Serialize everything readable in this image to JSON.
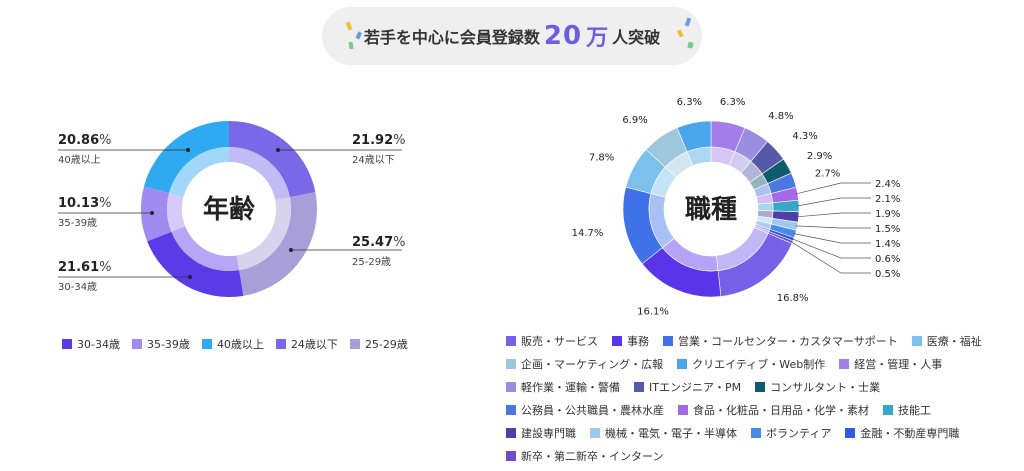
{
  "headline": {
    "prefix": "若手を中心に会員登録数",
    "number": "20",
    "unit": "万",
    "suffix": "人突破"
  },
  "colors": {
    "headline_bg": "#efefef",
    "accent": "#6f5ce0"
  },
  "chart_data": [
    {
      "type": "pie",
      "variant": "donut",
      "title": "年齢",
      "slices": [
        {
          "label": "24歳以下",
          "value": 21.92,
          "value_text": "21.92",
          "color": "#7a68e8",
          "label_side": "right"
        },
        {
          "label": "25-29歳",
          "value": 25.47,
          "value_text": "25.47",
          "color": "#a89ed8",
          "label_side": "right"
        },
        {
          "label": "30-34歳",
          "value": 21.61,
          "value_text": "21.61",
          "color": "#5a3be8",
          "label_side": "left"
        },
        {
          "label": "35-39歳",
          "value": 10.13,
          "value_text": "10.13",
          "color": "#a08cf0",
          "label_side": "left"
        },
        {
          "label": "40歳以上",
          "value": 20.86,
          "value_text": "20.86",
          "color": "#2fa9ef",
          "label_side": "left"
        }
      ],
      "value_suffix": "%",
      "legend": [
        "30-34歳",
        "35-39歳",
        "40歳以上",
        "24歳以下",
        "25-29歳"
      ],
      "legend_placement": "bottom"
    },
    {
      "type": "pie",
      "variant": "donut",
      "title": "職種",
      "slices": [
        {
          "label": "経営・管理・人事",
          "value": 6.3,
          "value_text": "6.3%",
          "color": "#a47ee8"
        },
        {
          "label": "軽作業・運輸・警備",
          "value": 4.8,
          "value_text": "4.8%",
          "color": "#9b8ee0"
        },
        {
          "label": "ITエンジニア・PM",
          "value": 4.3,
          "value_text": "4.3%",
          "color": "#545aa8"
        },
        {
          "label": "コンサルタント・士業",
          "value": 2.9,
          "value_text": "2.9%",
          "color": "#0e5a6e"
        },
        {
          "label": "公務員・公共職員・農林水産",
          "value": 2.7,
          "value_text": "2.7%",
          "color": "#4a78e0"
        },
        {
          "label": "食品・化粧品・日用品・化学・素材",
          "value": 2.4,
          "value_text": "2.4%",
          "color": "#a468e8"
        },
        {
          "label": "技能工",
          "value": 2.1,
          "value_text": "2.1%",
          "color": "#37a8c8"
        },
        {
          "label": "建設専門職",
          "value": 1.9,
          "value_text": "1.9%",
          "color": "#4e3ea8"
        },
        {
          "label": "機械・電気・電子・半導体",
          "value": 1.5,
          "value_text": "1.5%",
          "color": "#9ec8f0"
        },
        {
          "label": "ボランティア",
          "value": 1.4,
          "value_text": "1.4%",
          "color": "#4a8ae8"
        },
        {
          "label": "金融・不動産専門職",
          "value": 0.6,
          "value_text": "0.6%",
          "color": "#3058e8"
        },
        {
          "label": "新卒・第二新卒・インターン",
          "value": 0.5,
          "value_text": "0.5%",
          "color": "#6e4ec8"
        },
        {
          "label": "販売・サービス",
          "value": 16.8,
          "value_text": "16.8%",
          "color": "#7660e8"
        },
        {
          "label": "事務",
          "value": 16.1,
          "value_text": "16.1%",
          "color": "#5a34e8"
        },
        {
          "label": "営業・コールセンター・カスタマーサポート",
          "value": 14.7,
          "value_text": "14.7%",
          "color": "#3f72e8"
        },
        {
          "label": "医療・福祉",
          "value": 7.8,
          "value_text": "7.8%",
          "color": "#7cc0ec"
        },
        {
          "label": "企画・マーケティング・広報",
          "value": 6.9,
          "value_text": "6.9%",
          "color": "#9ec6dc"
        },
        {
          "label": "クリエイティブ・Web制作",
          "value": 6.3,
          "value_text": "6.3%",
          "color": "#4aa6ec"
        }
      ],
      "legend": [
        "販売・サービス",
        "事務",
        "営業・コールセンター・カスタマーサポート",
        "医療・福祉",
        "企画・マーケティング・広報",
        "クリエイティブ・Web制作",
        "経営・管理・人事",
        "軽作業・運輸・警備",
        "ITエンジニア・PM",
        "コンサルタント・士業",
        "公務員・公共職員・農林水産",
        "食品・化粧品・日用品・化学・素材",
        "技能工",
        "建設専門職",
        "機械・電気・電子・半導体",
        "ボランティア",
        "金融・不動産専門職",
        "新卒・第二新卒・インターン"
      ],
      "legend_placement": "bottom"
    }
  ]
}
